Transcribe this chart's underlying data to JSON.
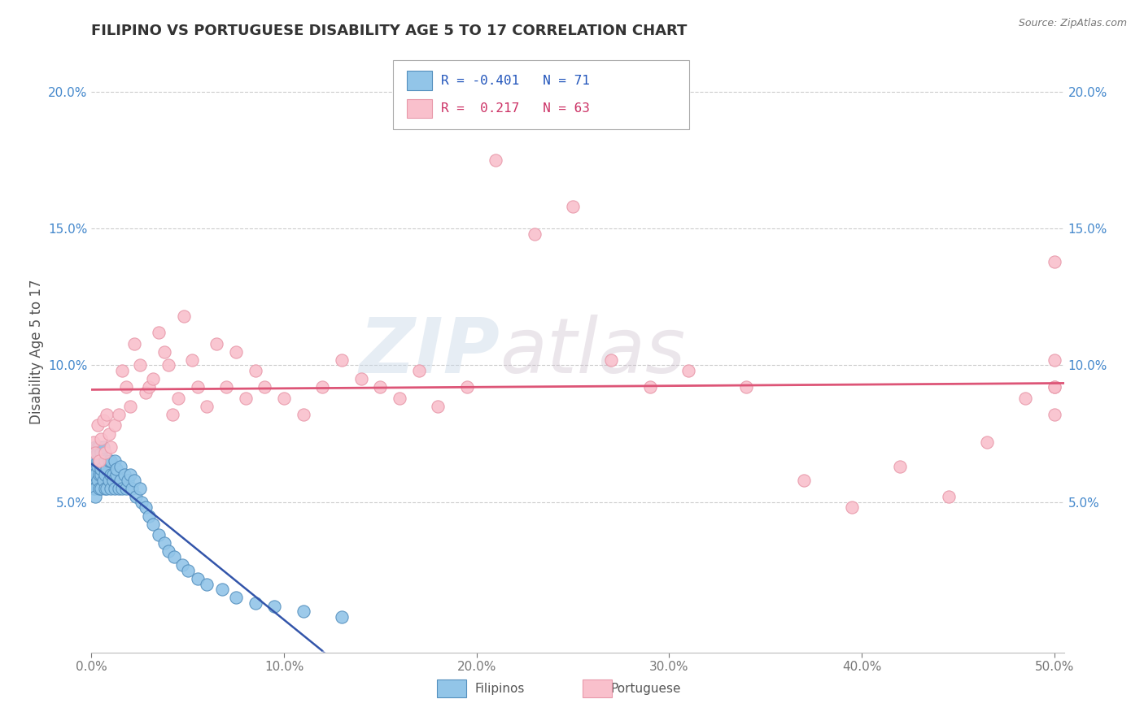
{
  "title": "FILIPINO VS PORTUGUESE DISABILITY AGE 5 TO 17 CORRELATION CHART",
  "source": "Source: ZipAtlas.com",
  "ylabel": "Disability Age 5 to 17",
  "xlim": [
    0.0,
    0.505
  ],
  "ylim": [
    -0.005,
    0.215
  ],
  "xticks": [
    0.0,
    0.1,
    0.2,
    0.3,
    0.4,
    0.5
  ],
  "xtick_labels": [
    "0.0%",
    "10.0%",
    "20.0%",
    "30.0%",
    "40.0%",
    "50.0%"
  ],
  "yticks": [
    0.05,
    0.1,
    0.15,
    0.2
  ],
  "ytick_labels": [
    "5.0%",
    "10.0%",
    "15.0%",
    "20.0%"
  ],
  "filipino_color": "#92c5e8",
  "portuguese_color": "#f9c0cc",
  "filipino_edge": "#5590be",
  "portuguese_edge": "#e899aa",
  "trend_blue": "#3355aa",
  "trend_blue_dashed": "#8899cc",
  "trend_pink": "#dd5577",
  "R_filipino": -0.401,
  "N_filipino": 71,
  "R_portuguese": 0.217,
  "N_portuguese": 63,
  "watermark_zip": "ZIP",
  "watermark_atlas": "atlas",
  "background": "#ffffff",
  "grid_color": "#cccccc",
  "filipino_points_x": [
    0.001,
    0.001,
    0.001,
    0.001,
    0.002,
    0.002,
    0.002,
    0.002,
    0.002,
    0.003,
    0.003,
    0.003,
    0.003,
    0.003,
    0.004,
    0.004,
    0.004,
    0.004,
    0.005,
    0.005,
    0.005,
    0.005,
    0.006,
    0.006,
    0.006,
    0.007,
    0.007,
    0.007,
    0.008,
    0.008,
    0.009,
    0.009,
    0.01,
    0.01,
    0.01,
    0.011,
    0.011,
    0.012,
    0.012,
    0.013,
    0.013,
    0.014,
    0.015,
    0.015,
    0.016,
    0.017,
    0.018,
    0.019,
    0.02,
    0.021,
    0.022,
    0.023,
    0.025,
    0.026,
    0.028,
    0.03,
    0.032,
    0.035,
    0.038,
    0.04,
    0.043,
    0.047,
    0.05,
    0.055,
    0.06,
    0.068,
    0.075,
    0.085,
    0.095,
    0.11,
    0.13
  ],
  "filipino_points_y": [
    0.062,
    0.058,
    0.055,
    0.06,
    0.07,
    0.065,
    0.06,
    0.055,
    0.052,
    0.065,
    0.063,
    0.058,
    0.07,
    0.068,
    0.06,
    0.055,
    0.065,
    0.07,
    0.068,
    0.06,
    0.055,
    0.062,
    0.058,
    0.063,
    0.07,
    0.055,
    0.06,
    0.065,
    0.055,
    0.062,
    0.058,
    0.065,
    0.06,
    0.065,
    0.055,
    0.06,
    0.058,
    0.065,
    0.055,
    0.06,
    0.062,
    0.055,
    0.058,
    0.063,
    0.055,
    0.06,
    0.055,
    0.058,
    0.06,
    0.055,
    0.058,
    0.052,
    0.055,
    0.05,
    0.048,
    0.045,
    0.042,
    0.038,
    0.035,
    0.032,
    0.03,
    0.027,
    0.025,
    0.022,
    0.02,
    0.018,
    0.015,
    0.013,
    0.012,
    0.01,
    0.008
  ],
  "portuguese_points_x": [
    0.001,
    0.002,
    0.003,
    0.004,
    0.005,
    0.006,
    0.007,
    0.008,
    0.009,
    0.01,
    0.012,
    0.014,
    0.016,
    0.018,
    0.02,
    0.022,
    0.025,
    0.028,
    0.03,
    0.032,
    0.035,
    0.038,
    0.04,
    0.042,
    0.045,
    0.048,
    0.052,
    0.055,
    0.06,
    0.065,
    0.07,
    0.075,
    0.08,
    0.085,
    0.09,
    0.1,
    0.11,
    0.12,
    0.13,
    0.14,
    0.15,
    0.16,
    0.17,
    0.18,
    0.195,
    0.21,
    0.23,
    0.25,
    0.27,
    0.29,
    0.31,
    0.34,
    0.37,
    0.395,
    0.42,
    0.445,
    0.465,
    0.485,
    0.5,
    0.5,
    0.5,
    0.5,
    0.5
  ],
  "portuguese_points_y": [
    0.072,
    0.068,
    0.078,
    0.065,
    0.073,
    0.08,
    0.068,
    0.082,
    0.075,
    0.07,
    0.078,
    0.082,
    0.098,
    0.092,
    0.085,
    0.108,
    0.1,
    0.09,
    0.092,
    0.095,
    0.112,
    0.105,
    0.1,
    0.082,
    0.088,
    0.118,
    0.102,
    0.092,
    0.085,
    0.108,
    0.092,
    0.105,
    0.088,
    0.098,
    0.092,
    0.088,
    0.082,
    0.092,
    0.102,
    0.095,
    0.092,
    0.088,
    0.098,
    0.085,
    0.092,
    0.175,
    0.148,
    0.158,
    0.102,
    0.092,
    0.098,
    0.092,
    0.058,
    0.048,
    0.063,
    0.052,
    0.072,
    0.088,
    0.092,
    0.102,
    0.092,
    0.082,
    0.138
  ]
}
